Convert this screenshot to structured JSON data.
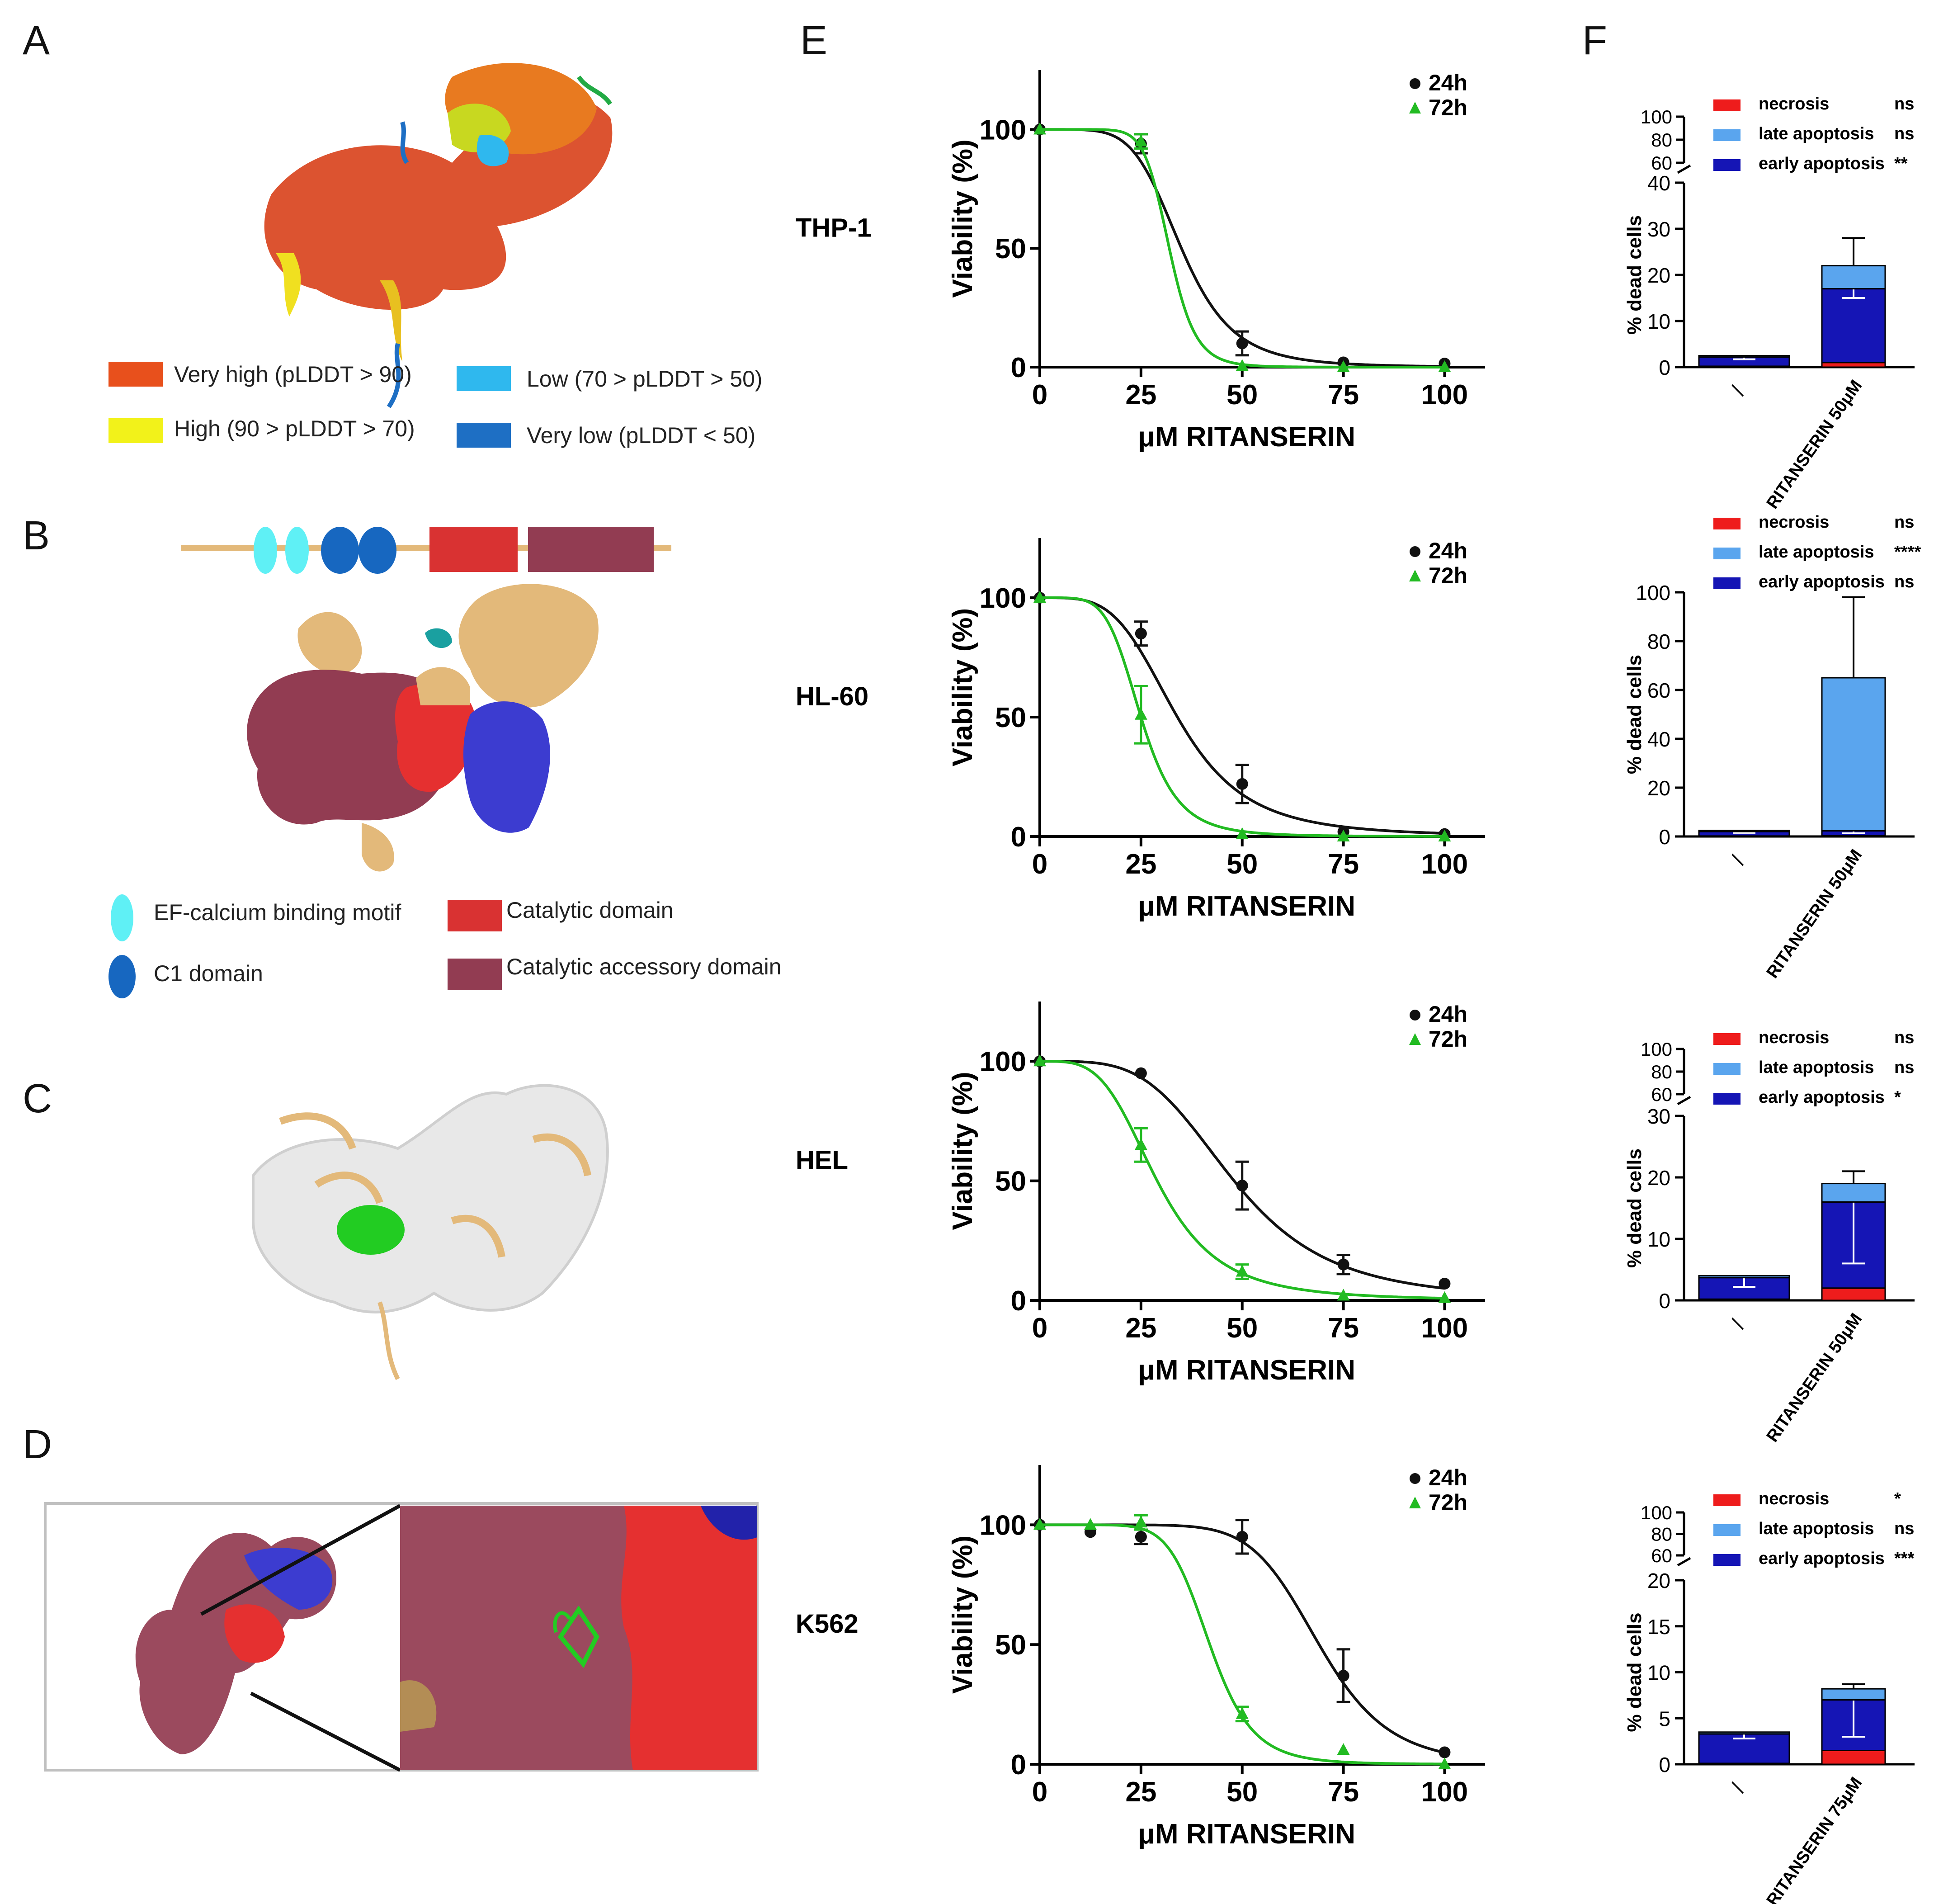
{
  "panel_letters": [
    "A",
    "B",
    "C",
    "D",
    "E",
    "F"
  ],
  "panel_a": {
    "legend": [
      {
        "label": "Very high (pLDDT > 90)",
        "color": "#e8501c"
      },
      {
        "label": "High (90 > pLDDT > 70)",
        "color": "#f2f21a"
      },
      {
        "label": "Low (70 > pLDDT > 50)",
        "color": "#2fb8ee"
      },
      {
        "label": "Very low (pLDDT < 50)",
        "color": "#1e6fc4"
      }
    ]
  },
  "panel_b": {
    "legend": [
      {
        "label": "EF-calcium binding motif",
        "color": "#5ff0f5",
        "shape": "ellipse"
      },
      {
        "label": "C1 domain",
        "color": "#1767c0",
        "shape": "ellipse"
      },
      {
        "label": "Catalytic domain",
        "color": "#d93232",
        "shape": "rect"
      },
      {
        "label": "Catalytic accessory domain",
        "color": "#923c52",
        "shape": "rect"
      }
    ]
  },
  "colors": {
    "h24": "#111111",
    "h72": "#22bb22",
    "necrosis": "#ee1c1c",
    "late": "#5aa5ee",
    "early": "#1515b5",
    "protein_tan": "#e3b97a",
    "protein_white": "#e8e8e8",
    "ligand": "#22cc22",
    "pocket_maroon": "#9b4a5e"
  },
  "chart_data": [
    {
      "type": "line",
      "panel": "E",
      "cell_line": "THP-1",
      "xlabel": "μM RITANSERIN",
      "ylabel": "Viability (%)",
      "xlim": [
        0,
        110
      ],
      "ylim": [
        0,
        125
      ],
      "xticks": [
        0,
        25,
        50,
        75,
        100
      ],
      "yticks": [
        0,
        50,
        100
      ],
      "series": [
        {
          "name": "24h",
          "marker": "circle",
          "x": [
            0,
            25,
            50,
            75,
            100
          ],
          "y": [
            100,
            94,
            10,
            2,
            1.5
          ],
          "err": [
            0,
            4,
            5,
            0,
            0
          ],
          "ic50": 35,
          "hill": 5.5
        },
        {
          "name": "72h",
          "marker": "triangle",
          "x": [
            0,
            25,
            50,
            75,
            100
          ],
          "y": [
            100,
            95,
            0.5,
            0,
            0
          ],
          "err": [
            0,
            3,
            0,
            0,
            0
          ],
          "ic50": 32,
          "hill": 10
        }
      ]
    },
    {
      "type": "line",
      "panel": "E",
      "cell_line": "HL-60",
      "xlabel": "μM RITANSERIN",
      "ylabel": "Viability (%)",
      "xlim": [
        0,
        110
      ],
      "ylim": [
        0,
        125
      ],
      "xticks": [
        0,
        25,
        50,
        75,
        100
      ],
      "yticks": [
        0,
        50,
        100
      ],
      "series": [
        {
          "name": "24h",
          "marker": "circle",
          "x": [
            0,
            25,
            50,
            75,
            100
          ],
          "y": [
            100,
            85,
            22,
            2,
            1
          ],
          "err": [
            0,
            5,
            8,
            0,
            0
          ],
          "ic50": 34,
          "hill": 4
        },
        {
          "name": "72h",
          "marker": "triangle",
          "x": [
            0,
            25,
            50,
            75,
            100
          ],
          "y": [
            100,
            51,
            1,
            0,
            0
          ],
          "err": [
            0,
            12,
            0,
            0,
            0
          ],
          "ic50": 25,
          "hill": 5.5
        }
      ]
    },
    {
      "type": "line",
      "panel": "E",
      "cell_line": "HEL",
      "xlabel": "μM RITANSERIN",
      "ylabel": "Viability (%)",
      "xlim": [
        0,
        110
      ],
      "ylim": [
        0,
        125
      ],
      "xticks": [
        0,
        25,
        50,
        75,
        100
      ],
      "yticks": [
        0,
        50,
        100
      ],
      "series": [
        {
          "name": "24h",
          "marker": "circle",
          "x": [
            0,
            25,
            50,
            75,
            100
          ],
          "y": [
            100,
            95,
            48,
            15,
            7
          ],
          "err": [
            0,
            0,
            10,
            4,
            0
          ],
          "ic50": 48,
          "hill": 4
        },
        {
          "name": "72h",
          "marker": "triangle",
          "x": [
            0,
            25,
            50,
            75,
            100
          ],
          "y": [
            100,
            65,
            12,
            2,
            1
          ],
          "err": [
            0,
            7,
            3,
            0,
            0
          ],
          "ic50": 29,
          "hill": 3.8
        }
      ]
    },
    {
      "type": "line",
      "panel": "E",
      "cell_line": "K562",
      "xlabel": "μM RITANSERIN",
      "ylabel": "Viability (%)",
      "xlim": [
        0,
        110
      ],
      "ylim": [
        0,
        125
      ],
      "xticks": [
        0,
        25,
        50,
        75,
        100
      ],
      "yticks": [
        0,
        50,
        100
      ],
      "series": [
        {
          "name": "24h",
          "marker": "circle",
          "x": [
            0,
            12.5,
            25,
            50,
            75,
            100
          ],
          "y": [
            100,
            97,
            95,
            95,
            37,
            5
          ],
          "err": [
            0,
            0,
            3,
            7,
            11,
            0
          ],
          "ic50": 69,
          "hill": 8
        },
        {
          "name": "72h",
          "marker": "triangle",
          "x": [
            0,
            12.5,
            25,
            50,
            75,
            100
          ],
          "y": [
            100,
            100,
            101,
            21,
            6,
            0
          ],
          "err": [
            0,
            0,
            3,
            3,
            0,
            0
          ],
          "ic50": 42,
          "hill": 8
        }
      ]
    },
    {
      "type": "stacked-bar",
      "panel": "F",
      "ylabel": "% dead cells",
      "categories": [
        "/",
        "RITANSERIN 50μM"
      ],
      "ylim": [
        0,
        40
      ],
      "yticks": [
        0,
        10,
        20,
        30,
        40
      ],
      "broken_ticks": [
        60,
        80,
        100
      ],
      "series": [
        {
          "name": "necrosis",
          "sig": "ns",
          "values": [
            0.2,
            1
          ],
          "err": [
            0,
            0
          ]
        },
        {
          "name": "late apoptosis",
          "sig": "ns",
          "values": [
            0.3,
            5
          ],
          "err": [
            0,
            6
          ]
        },
        {
          "name": "early apoptosis",
          "sig": "**",
          "values": [
            2,
            16
          ],
          "err": [
            0.5,
            2
          ]
        }
      ]
    },
    {
      "type": "stacked-bar",
      "panel": "F",
      "ylabel": "% dead cells",
      "categories": [
        "/",
        "RITANSERIN 50μM"
      ],
      "ylim": [
        0,
        100
      ],
      "yticks": [
        0,
        20,
        40,
        60,
        80,
        100
      ],
      "broken_ticks": [],
      "series": [
        {
          "name": "necrosis",
          "sig": "ns",
          "values": [
            0.2,
            0.3
          ],
          "err": [
            0,
            0
          ]
        },
        {
          "name": "late apoptosis",
          "sig": "****",
          "values": [
            0.5,
            62.7
          ],
          "err": [
            0,
            33
          ]
        },
        {
          "name": "early apoptosis",
          "sig": "ns",
          "values": [
            1.8,
            2
          ],
          "err": [
            0.5,
            1
          ]
        }
      ]
    },
    {
      "type": "stacked-bar",
      "panel": "F",
      "ylabel": "% dead cells",
      "categories": [
        "/",
        "RITANSERIN 50μM"
      ],
      "ylim": [
        0,
        30
      ],
      "yticks": [
        0,
        10,
        20,
        30
      ],
      "broken_ticks": [
        60,
        80,
        100
      ],
      "series": [
        {
          "name": "necrosis",
          "sig": "ns",
          "values": [
            0.2,
            2
          ],
          "err": [
            0,
            0
          ]
        },
        {
          "name": "late apoptosis",
          "sig": "ns",
          "values": [
            0.3,
            3
          ],
          "err": [
            0,
            2
          ]
        },
        {
          "name": "early apoptosis",
          "sig": "*",
          "values": [
            3.5,
            14
          ],
          "err": [
            1.5,
            10
          ]
        }
      ]
    },
    {
      "type": "stacked-bar",
      "panel": "F",
      "ylabel": "% dead cells",
      "categories": [
        "/",
        "RITANSERIN 75μM"
      ],
      "ylim": [
        0,
        20
      ],
      "yticks": [
        0,
        5,
        10,
        15,
        20
      ],
      "broken_ticks": [
        60,
        80,
        100
      ],
      "series": [
        {
          "name": "necrosis",
          "sig": "*",
          "values": [
            0.1,
            1.5
          ],
          "err": [
            0,
            0
          ]
        },
        {
          "name": "late apoptosis",
          "sig": "ns",
          "values": [
            0.2,
            1.2
          ],
          "err": [
            0,
            0.5
          ]
        },
        {
          "name": "early apoptosis",
          "sig": "***",
          "values": [
            3.2,
            5.5
          ],
          "err": [
            0.5,
            4
          ]
        }
      ]
    }
  ]
}
